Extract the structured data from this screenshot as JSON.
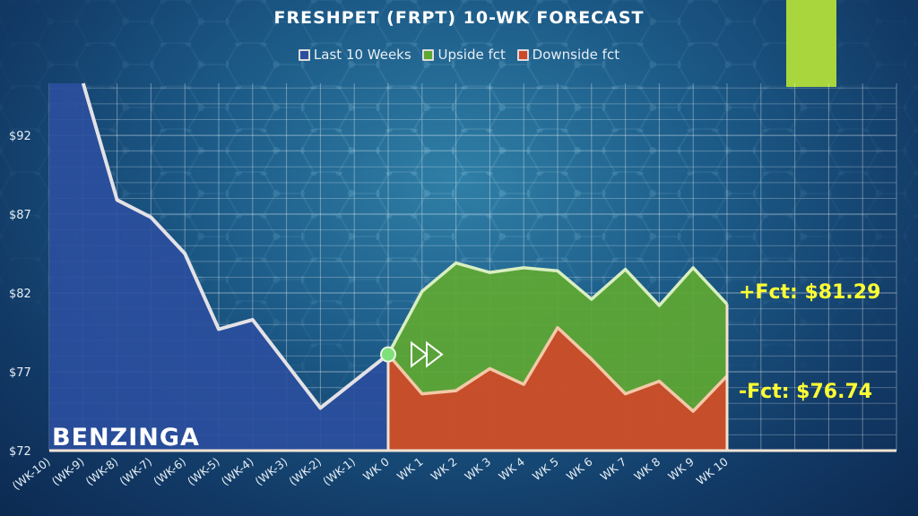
{
  "colors": {
    "history": "#2b4f9e",
    "upside": "#5ea832",
    "downside": "#cc4a2a",
    "line": "#e4e2e6",
    "accent": "#a8d63c",
    "forecast_text": "#ffff33"
  },
  "brand": "BENZINGA",
  "forecast_labels": {
    "upside": "+Fct: $81.29",
    "downside": "-Fct: $76.74"
  },
  "chart_data": {
    "type": "area",
    "title": "FRESHPET (FRPT) 10-WK FORECAST",
    "categories": [
      "(WK-10)",
      "(WK-9)",
      "(WK-8)",
      "(WK-7)",
      "(WK-6)",
      "(WK-5)",
      "(WK-4)",
      "(WK-3)",
      "(WK-2)",
      "(WK-1)",
      "WK 0",
      "WK 1",
      "WK 2",
      "WK 3",
      "WK 4",
      "WK 5",
      "WK 6",
      "WK 7",
      "WK 8",
      "WK 9",
      "WK 10"
    ],
    "yticks": [
      "$72",
      "$77",
      "$82",
      "$87",
      "$92"
    ],
    "ylim": [
      72,
      95.3
    ],
    "grid": true,
    "legend_position": "top",
    "series": [
      {
        "name": "Last 10 Weeks",
        "values": [
          null,
          95.3,
          87.9,
          86.8,
          84.5,
          79.7,
          80.3,
          77.5,
          74.7,
          76.4,
          78.1,
          null,
          null,
          null,
          null,
          null,
          null,
          null,
          null,
          null,
          null
        ]
      },
      {
        "name": "Upside fct",
        "values": [
          null,
          null,
          null,
          null,
          null,
          null,
          null,
          null,
          null,
          null,
          78.1,
          82.1,
          83.9,
          83.3,
          83.6,
          83.4,
          81.6,
          83.5,
          81.2,
          83.6,
          81.29
        ]
      },
      {
        "name": "Downside fct",
        "values": [
          null,
          null,
          null,
          null,
          null,
          null,
          null,
          null,
          null,
          null,
          78.1,
          75.6,
          75.8,
          77.2,
          76.2,
          79.8,
          77.8,
          75.6,
          76.4,
          74.5,
          76.74
        ]
      }
    ]
  }
}
